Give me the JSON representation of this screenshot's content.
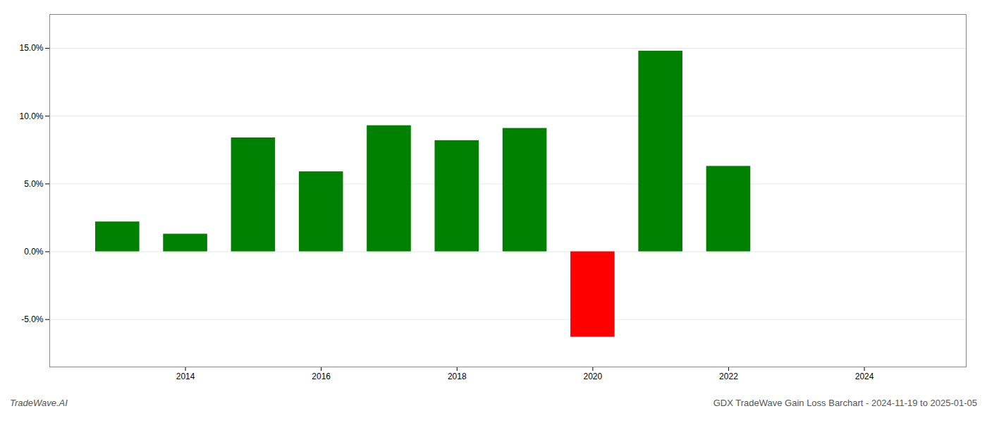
{
  "chart_data": {
    "type": "bar",
    "title": "GDX TradeWave Gain Loss Barchart - 2024-11-19 to 2025-01-05",
    "annotations": [
      "TradeWave.AI"
    ],
    "x": [
      2013,
      2014,
      2015,
      2016,
      2017,
      2018,
      2019,
      2020,
      2021,
      2022
    ],
    "values": [
      0.022,
      0.013,
      0.084,
      0.059,
      0.093,
      0.082,
      0.091,
      -0.063,
      0.148,
      0.063
    ],
    "colors": [
      "#008000",
      "#008000",
      "#008000",
      "#008000",
      "#008000",
      "#008000",
      "#008000",
      "#ff0000",
      "#008000",
      "#008000"
    ],
    "xlim": [
      2012.0,
      2025.5
    ],
    "xticks": [
      2014,
      2016,
      2018,
      2020,
      2022,
      2024
    ],
    "ylim": [
      -0.085,
      0.175
    ],
    "yticks": [
      {
        "value": -0.05,
        "label": "-5.0%"
      },
      {
        "value": 0.0,
        "label": "0.0%"
      },
      {
        "value": 0.05,
        "label": "5.0%"
      },
      {
        "value": 0.1,
        "label": "10.0%"
      },
      {
        "value": 0.15,
        "label": "15.0%"
      }
    ],
    "grid": true
  }
}
